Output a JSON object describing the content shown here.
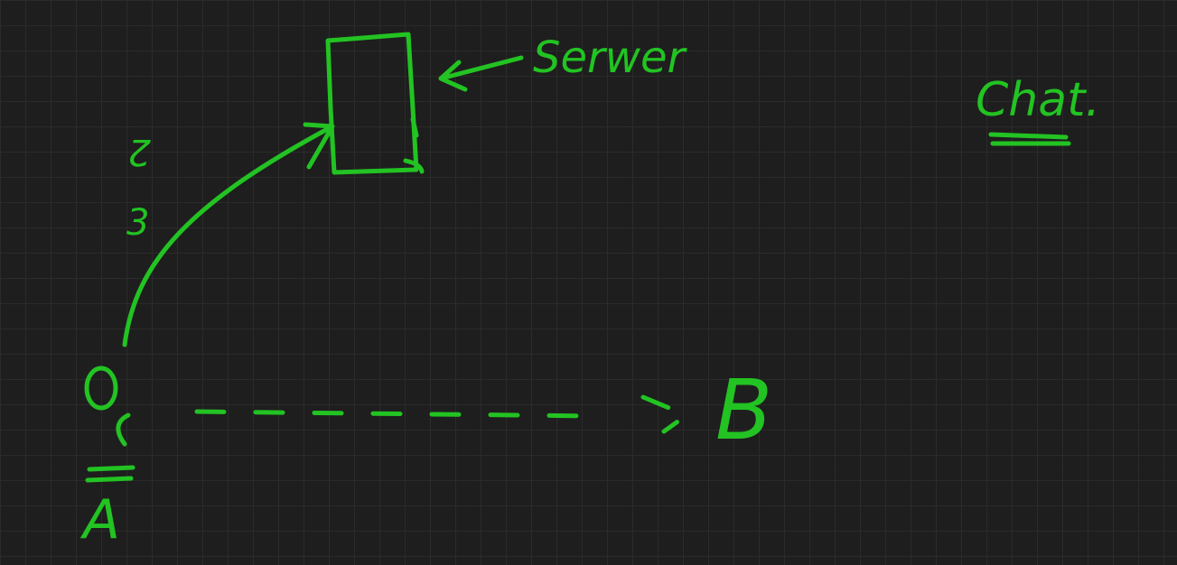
{
  "canvas": {
    "background": "#1e1e1e",
    "grid_color": "#2b2b2b",
    "ink_color": "#22c322"
  },
  "heading": {
    "text": "Chat."
  },
  "server": {
    "label": "Serwer"
  },
  "client_a": {
    "label": "A"
  },
  "client_b": {
    "label": "B"
  },
  "margin_numbers": [
    "2",
    "3"
  ]
}
